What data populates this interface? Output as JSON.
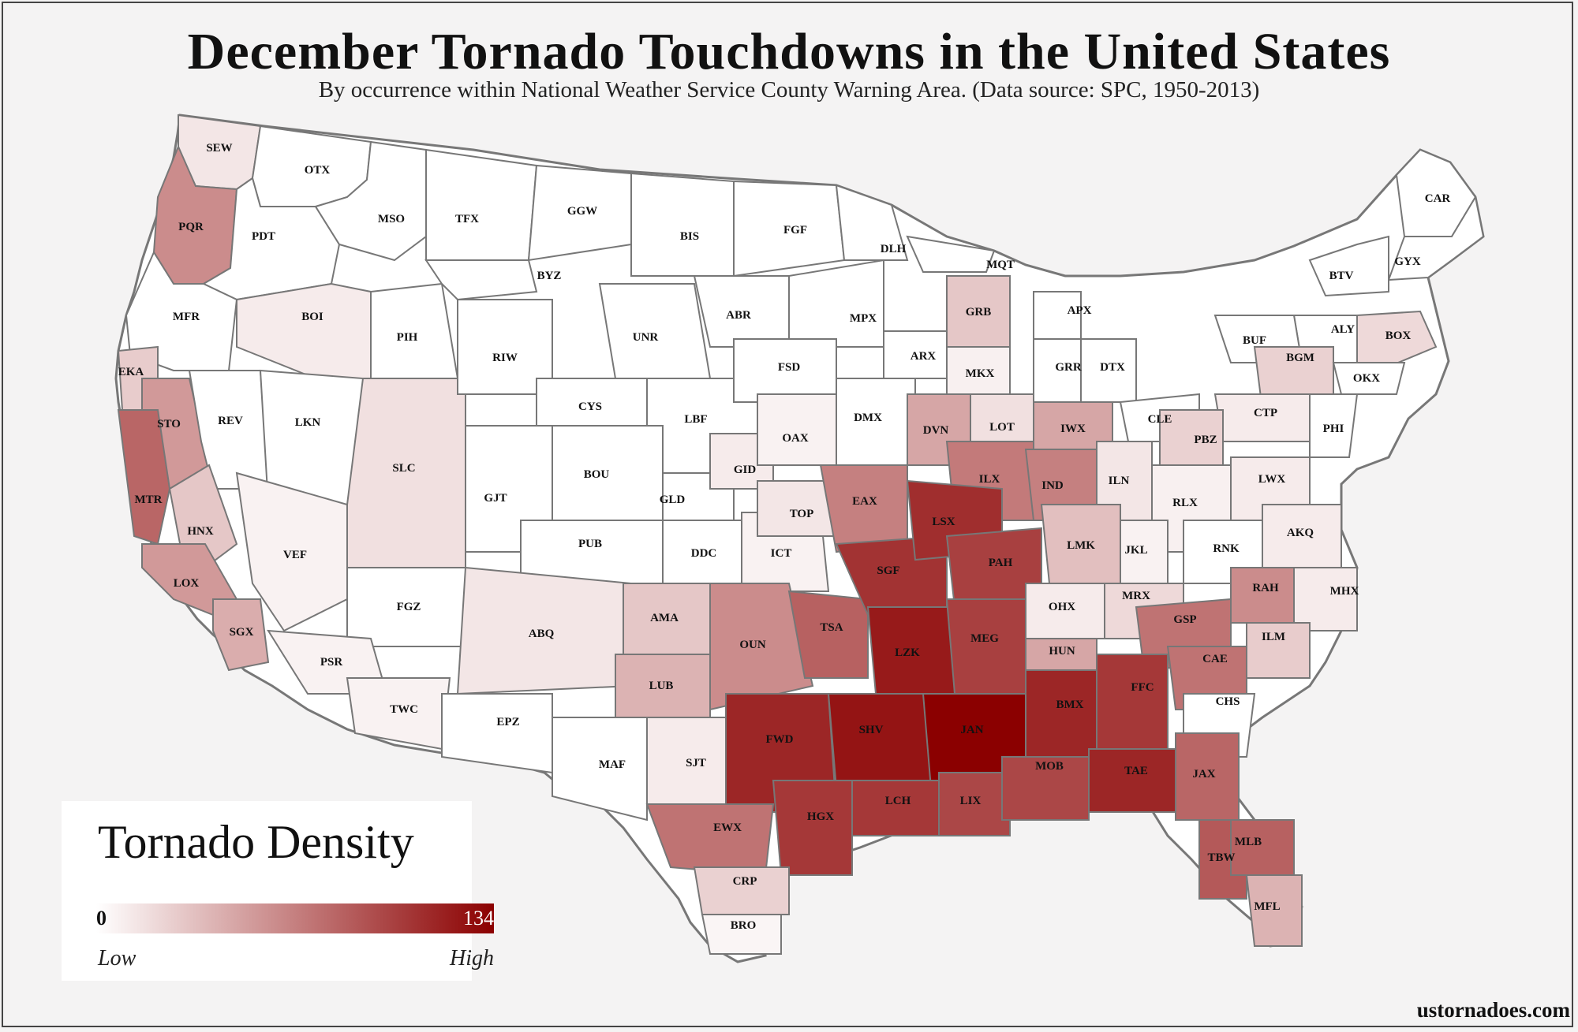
{
  "title": "December Tornado Touchdowns in the United States",
  "subtitle": "By occurrence within National Weather Service County Warning Area. (Data source: SPC, 1950-2013)",
  "legend": {
    "title": "Tornado Density",
    "min": "0",
    "max": "134",
    "low": "Low",
    "high": "High"
  },
  "credit": "ustornadoes.com",
  "colors": {
    "low": "#ffffff",
    "high": "#8b0000",
    "border": "#777777",
    "background": "#f4f3f3"
  },
  "regions": [
    {
      "code": "SEW",
      "level": 0.1
    },
    {
      "code": "OTX",
      "level": 0.0
    },
    {
      "code": "PQR",
      "level": 0.45
    },
    {
      "code": "PDT",
      "level": 0.0
    },
    {
      "code": "MSO",
      "level": 0.0
    },
    {
      "code": "TFX",
      "level": 0.0
    },
    {
      "code": "GGW",
      "level": 0.0
    },
    {
      "code": "BIS",
      "level": 0.0
    },
    {
      "code": "FGF",
      "level": 0.0
    },
    {
      "code": "DLH",
      "level": 0.0
    },
    {
      "code": "MQT",
      "level": 0.0
    },
    {
      "code": "CAR",
      "level": 0.0
    },
    {
      "code": "GYX",
      "level": 0.0
    },
    {
      "code": "BTV",
      "level": 0.0
    },
    {
      "code": "MFR",
      "level": 0.0
    },
    {
      "code": "BOI",
      "level": 0.08
    },
    {
      "code": "PIH",
      "level": 0.0
    },
    {
      "code": "BYZ",
      "level": 0.0
    },
    {
      "code": "UNR",
      "level": 0.0
    },
    {
      "code": "ABR",
      "level": 0.0
    },
    {
      "code": "MPX",
      "level": 0.0
    },
    {
      "code": "GRB",
      "level": 0.22
    },
    {
      "code": "APX",
      "level": 0.0
    },
    {
      "code": "ALY",
      "level": 0.0
    },
    {
      "code": "BOX",
      "level": 0.15
    },
    {
      "code": "BUF",
      "level": 0.0
    },
    {
      "code": "BGM",
      "level": 0.18
    },
    {
      "code": "OKX",
      "level": 0.0
    },
    {
      "code": "EKA",
      "level": 0.2
    },
    {
      "code": "STO",
      "level": 0.4
    },
    {
      "code": "REV",
      "level": 0.0
    },
    {
      "code": "LKN",
      "level": 0.0
    },
    {
      "code": "SLC",
      "level": 0.12
    },
    {
      "code": "RIW",
      "level": 0.0
    },
    {
      "code": "CYS",
      "level": 0.0
    },
    {
      "code": "LBF",
      "level": 0.0
    },
    {
      "code": "FSD",
      "level": 0.0
    },
    {
      "code": "ARX",
      "level": 0.0
    },
    {
      "code": "MKX",
      "level": 0.06
    },
    {
      "code": "GRR",
      "level": 0.0
    },
    {
      "code": "DTX",
      "level": 0.0
    },
    {
      "code": "CLE",
      "level": 0.0
    },
    {
      "code": "CTP",
      "level": 0.08
    },
    {
      "code": "PHI",
      "level": 0.0
    },
    {
      "code": "MTR",
      "level": 0.6
    },
    {
      "code": "HNX",
      "level": 0.22
    },
    {
      "code": "VEF",
      "level": 0.05
    },
    {
      "code": "GJT",
      "level": 0.0
    },
    {
      "code": "BOU",
      "level": 0.0
    },
    {
      "code": "GLD",
      "level": 0.0
    },
    {
      "code": "GID",
      "level": 0.08
    },
    {
      "code": "OAX",
      "level": 0.05
    },
    {
      "code": "DMX",
      "level": 0.0
    },
    {
      "code": "DVN",
      "level": 0.35
    },
    {
      "code": "LOT",
      "level": 0.12
    },
    {
      "code": "IWX",
      "level": 0.35
    },
    {
      "code": "PBZ",
      "level": 0.18
    },
    {
      "code": "LWX",
      "level": 0.08
    },
    {
      "code": "LOX",
      "level": 0.4
    },
    {
      "code": "SGX",
      "level": 0.32
    },
    {
      "code": "PUB",
      "level": 0.0
    },
    {
      "code": "DDC",
      "level": 0.0
    },
    {
      "code": "ICT",
      "level": 0.05
    },
    {
      "code": "TOP",
      "level": 0.1
    },
    {
      "code": "EAX",
      "level": 0.5
    },
    {
      "code": "ILX",
      "level": 0.52
    },
    {
      "code": "IND",
      "level": 0.5
    },
    {
      "code": "ILN",
      "level": 0.1
    },
    {
      "code": "RLX",
      "level": 0.06
    },
    {
      "code": "AKQ",
      "level": 0.08
    },
    {
      "code": "FGZ",
      "level": 0.0
    },
    {
      "code": "PSR",
      "level": 0.05
    },
    {
      "code": "TWC",
      "level": 0.05
    },
    {
      "code": "ABQ",
      "level": 0.1
    },
    {
      "code": "AMA",
      "level": 0.22
    },
    {
      "code": "LUB",
      "level": 0.3
    },
    {
      "code": "OUN",
      "level": 0.45
    },
    {
      "code": "TSA",
      "level": 0.62
    },
    {
      "code": "SGF",
      "level": 0.8
    },
    {
      "code": "LSX",
      "level": 0.82
    },
    {
      "code": "PAH",
      "level": 0.75
    },
    {
      "code": "LMK",
      "level": 0.25
    },
    {
      "code": "JKL",
      "level": 0.05
    },
    {
      "code": "RNK",
      "level": 0.0
    },
    {
      "code": "MHX",
      "level": 0.08
    },
    {
      "code": "RAH",
      "level": 0.45
    },
    {
      "code": "EPZ",
      "level": 0.0
    },
    {
      "code": "MAF",
      "level": 0.0
    },
    {
      "code": "SJT",
      "level": 0.08
    },
    {
      "code": "FWD",
      "level": 0.85
    },
    {
      "code": "LZK",
      "level": 0.9
    },
    {
      "code": "MEG",
      "level": 0.75
    },
    {
      "code": "OHX",
      "level": 0.08
    },
    {
      "code": "MRX",
      "level": 0.15
    },
    {
      "code": "GSP",
      "level": 0.55
    },
    {
      "code": "CAE",
      "level": 0.55
    },
    {
      "code": "ILM",
      "level": 0.2
    },
    {
      "code": "HUN",
      "level": 0.35
    },
    {
      "code": "SHV",
      "level": 0.92
    },
    {
      "code": "JAN",
      "level": 1.0
    },
    {
      "code": "BMX",
      "level": 0.85
    },
    {
      "code": "FFC",
      "level": 0.78
    },
    {
      "code": "CHS",
      "level": 0.0
    },
    {
      "code": "EWX",
      "level": 0.55
    },
    {
      "code": "HGX",
      "level": 0.78
    },
    {
      "code": "LCH",
      "level": 0.78
    },
    {
      "code": "LIX",
      "level": 0.72
    },
    {
      "code": "MOB",
      "level": 0.72
    },
    {
      "code": "TAE",
      "level": 0.85
    },
    {
      "code": "JAX",
      "level": 0.6
    },
    {
      "code": "CRP",
      "level": 0.18
    },
    {
      "code": "BRO",
      "level": 0.04
    },
    {
      "code": "TBW",
      "level": 0.65
    },
    {
      "code": "MLB",
      "level": 0.62
    },
    {
      "code": "MFL",
      "level": 0.3
    }
  ]
}
